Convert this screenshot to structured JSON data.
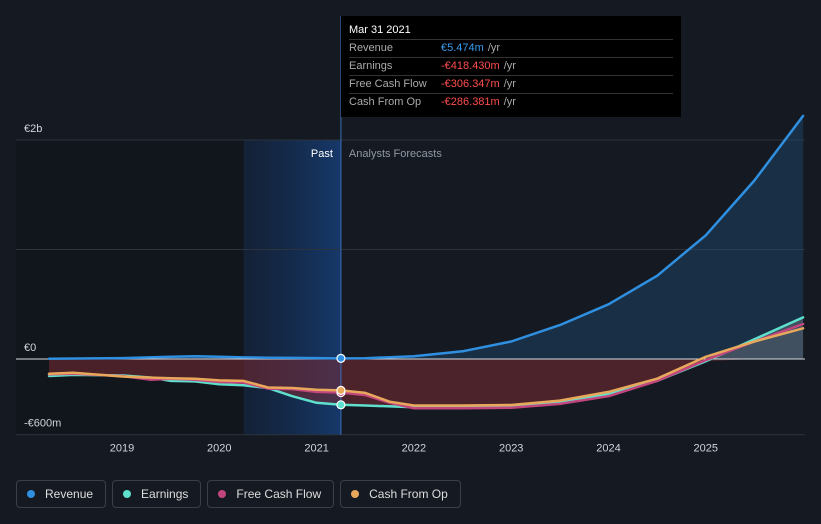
{
  "chart_data": {
    "type": "line",
    "y_tick_labels": {
      "top": "€2b",
      "zero": "€0",
      "bottom": "-€600m"
    },
    "ylim": [
      -600,
      2000
    ],
    "x_tick_labels": [
      "2019",
      "2020",
      "2021",
      "2022",
      "2023",
      "2024",
      "2025"
    ],
    "region_labels": {
      "past": "Past",
      "forecast": "Analysts Forecasts"
    },
    "divider_date": 2021.25,
    "past_shade_start": 2020.25,
    "series": [
      {
        "name": "Revenue",
        "color": "#2f8fe0",
        "points": [
          [
            2018.25,
            3
          ],
          [
            2019.0,
            8
          ],
          [
            2019.5,
            20
          ],
          [
            2019.75,
            25
          ],
          [
            2020.0,
            20
          ],
          [
            2020.25,
            15
          ],
          [
            2020.5,
            12
          ],
          [
            2020.75,
            10
          ],
          [
            2021.0,
            8
          ],
          [
            2021.25,
            5.474
          ],
          [
            2021.5,
            7
          ],
          [
            2022.0,
            25
          ],
          [
            2022.5,
            70
          ],
          [
            2023.0,
            160
          ],
          [
            2023.5,
            310
          ],
          [
            2024.0,
            500
          ],
          [
            2024.5,
            760
          ],
          [
            2025.0,
            1130
          ],
          [
            2025.5,
            1630
          ],
          [
            2026.0,
            2220
          ]
        ]
      },
      {
        "name": "Earnings",
        "color": "#5ee0cc",
        "points": [
          [
            2018.25,
            -155
          ],
          [
            2018.5,
            -145
          ],
          [
            2019.0,
            -150
          ],
          [
            2019.3,
            -170
          ],
          [
            2019.5,
            -200
          ],
          [
            2019.75,
            -205
          ],
          [
            2020.0,
            -230
          ],
          [
            2020.25,
            -240
          ],
          [
            2020.5,
            -265
          ],
          [
            2020.75,
            -340
          ],
          [
            2021.0,
            -400
          ],
          [
            2021.25,
            -418.43
          ],
          [
            2021.5,
            -425
          ],
          [
            2022.0,
            -440
          ],
          [
            2022.5,
            -440
          ],
          [
            2023.0,
            -435
          ],
          [
            2023.5,
            -395
          ],
          [
            2024.0,
            -320
          ],
          [
            2024.5,
            -200
          ],
          [
            2025.0,
            -20
          ],
          [
            2025.5,
            180
          ],
          [
            2026.0,
            380
          ]
        ]
      },
      {
        "name": "Free Cash Flow",
        "color": "#c2457e",
        "points": [
          [
            2018.25,
            -140
          ],
          [
            2018.5,
            -135
          ],
          [
            2019.0,
            -155
          ],
          [
            2019.3,
            -190
          ],
          [
            2019.5,
            -180
          ],
          [
            2019.75,
            -190
          ],
          [
            2020.0,
            -210
          ],
          [
            2020.25,
            -215
          ],
          [
            2020.5,
            -270
          ],
          [
            2020.75,
            -275
          ],
          [
            2021.0,
            -300
          ],
          [
            2021.25,
            -306.347
          ],
          [
            2021.5,
            -330
          ],
          [
            2021.75,
            -400
          ],
          [
            2022.0,
            -450
          ],
          [
            2022.5,
            -450
          ],
          [
            2023.0,
            -445
          ],
          [
            2023.5,
            -410
          ],
          [
            2024.0,
            -340
          ],
          [
            2024.5,
            -200
          ],
          [
            2025.0,
            -10
          ],
          [
            2025.5,
            160
          ],
          [
            2026.0,
            320
          ]
        ]
      },
      {
        "name": "Cash From Op",
        "color": "#e8a85c",
        "points": [
          [
            2018.25,
            -135
          ],
          [
            2018.5,
            -125
          ],
          [
            2019.0,
            -160
          ],
          [
            2019.3,
            -170
          ],
          [
            2019.5,
            -175
          ],
          [
            2019.75,
            -180
          ],
          [
            2020.0,
            -195
          ],
          [
            2020.25,
            -200
          ],
          [
            2020.5,
            -260
          ],
          [
            2020.75,
            -265
          ],
          [
            2021.0,
            -280
          ],
          [
            2021.25,
            -286.381
          ],
          [
            2021.5,
            -310
          ],
          [
            2021.75,
            -390
          ],
          [
            2022.0,
            -425
          ],
          [
            2022.5,
            -425
          ],
          [
            2023.0,
            -420
          ],
          [
            2023.5,
            -380
          ],
          [
            2024.0,
            -300
          ],
          [
            2024.5,
            -180
          ],
          [
            2025.0,
            20
          ],
          [
            2025.5,
            160
          ],
          [
            2026.0,
            280
          ]
        ]
      }
    ]
  },
  "tooltip": {
    "date": "Mar 31 2021",
    "rows": [
      {
        "label": "Revenue",
        "value": "€5.474m",
        "unit": "/yr",
        "color": "#3a9cf0"
      },
      {
        "label": "Earnings",
        "value": "-€418.430m",
        "unit": "/yr",
        "color": "#ff4d4d"
      },
      {
        "label": "Free Cash Flow",
        "value": "-€306.347m",
        "unit": "/yr",
        "color": "#ff4d4d"
      },
      {
        "label": "Cash From Op",
        "value": "-€286.381m",
        "unit": "/yr",
        "color": "#ff4d4d"
      }
    ]
  },
  "legend": [
    {
      "label": "Revenue",
      "color": "#2f8fe0"
    },
    {
      "label": "Earnings",
      "color": "#5ee0cc"
    },
    {
      "label": "Free Cash Flow",
      "color": "#c2457e"
    },
    {
      "label": "Cash From Op",
      "color": "#e8a85c"
    }
  ]
}
